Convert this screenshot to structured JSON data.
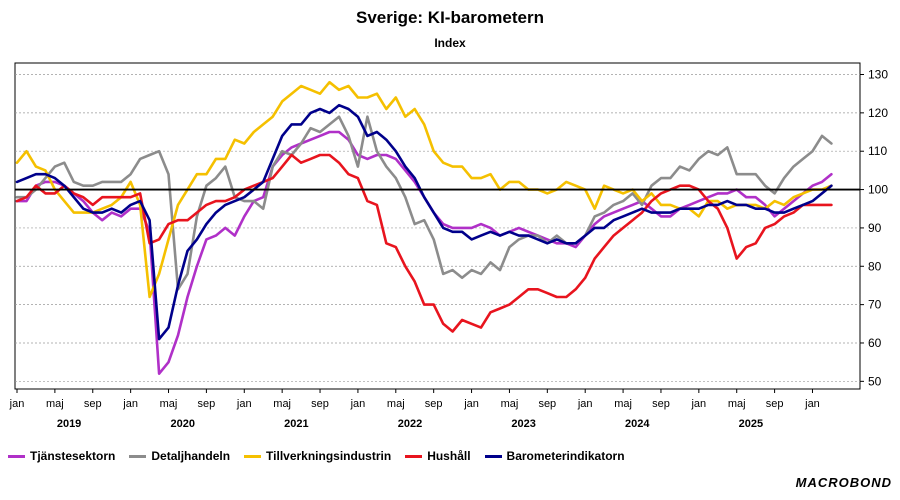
{
  "header": {
    "title": "Sverige: KI-barometern",
    "subtitle": "Index"
  },
  "brand": {
    "name": "MACROBOND"
  },
  "chart_data": {
    "type": "line",
    "title": "Sverige: KI-barometern",
    "ylabel": "Index",
    "xlabel": "",
    "ylim": [
      48,
      133
    ],
    "yticks": [
      50,
      60,
      70,
      80,
      90,
      100,
      110,
      120,
      130
    ],
    "reference_line": 100,
    "grid": "horizontal dashed",
    "x_start": "2019-01",
    "x_tick_labels": [
      "jan",
      "maj",
      "sep",
      "jan",
      "maj",
      "sep",
      "jan",
      "maj",
      "sep",
      "jan",
      "maj",
      "sep",
      "jan",
      "maj",
      "sep",
      "jan",
      "maj",
      "sep",
      "jan",
      "maj",
      "sep",
      "jan"
    ],
    "year_labels": [
      "2019",
      "2020",
      "2021",
      "2022",
      "2023",
      "2024",
      "2025"
    ],
    "legend_position": "bottom",
    "series": [
      {
        "name": "Tjänstesektorn",
        "color": "#b030c8",
        "values": [
          97,
          97,
          101,
          102,
          102,
          101,
          99,
          97,
          94,
          92,
          94,
          93,
          95,
          95,
          89,
          52,
          55,
          62,
          72,
          80,
          87,
          88,
          90,
          88,
          93,
          97,
          98,
          106,
          109,
          111,
          112,
          113,
          114,
          115,
          115,
          113,
          109,
          108,
          109,
          109,
          108,
          105,
          102,
          98,
          94,
          91,
          90,
          90,
          90,
          91,
          90,
          88,
          89,
          90,
          89,
          88,
          87,
          86,
          86,
          85,
          88,
          91,
          93,
          94,
          95,
          96,
          97,
          95,
          93,
          93,
          95,
          96,
          97,
          98,
          99,
          99,
          100,
          98,
          98,
          96,
          93,
          95,
          97,
          99,
          101,
          102,
          104
        ]
      },
      {
        "name": "Detaljhandeln",
        "color": "#8c8c8c",
        "values": [
          98,
          98,
          100,
          103,
          106,
          107,
          102,
          101,
          101,
          102,
          102,
          102,
          104,
          108,
          109,
          110,
          104,
          74,
          78,
          93,
          101,
          103,
          106,
          98,
          97,
          97,
          95,
          106,
          110,
          109,
          112,
          116,
          115,
          117,
          119,
          114,
          106,
          119,
          110,
          106,
          103,
          98,
          91,
          92,
          87,
          78,
          79,
          77,
          79,
          78,
          81,
          79,
          85,
          87,
          88,
          88,
          86,
          88,
          86,
          86,
          88,
          93,
          94,
          96,
          97,
          99,
          96,
          101,
          103,
          103,
          106,
          105,
          108,
          110,
          109,
          111,
          104,
          104,
          104,
          101,
          99,
          103,
          106,
          108,
          110,
          114,
          112
        ]
      },
      {
        "name": "Tillverkningsindustrin",
        "color": "#f5c000",
        "values": [
          107,
          110,
          106,
          105,
          100,
          97,
          94,
          94,
          94,
          95,
          96,
          98,
          102,
          96,
          72,
          78,
          87,
          96,
          100,
          104,
          104,
          108,
          108,
          113,
          112,
          115,
          117,
          119,
          123,
          125,
          127,
          126,
          125,
          128,
          126,
          127,
          124,
          124,
          125,
          121,
          124,
          119,
          121,
          117,
          110,
          107,
          106,
          106,
          103,
          103,
          104,
          100,
          102,
          102,
          100,
          100,
          99,
          100,
          102,
          101,
          100,
          95,
          101,
          100,
          99,
          100,
          97,
          99,
          96,
          96,
          95,
          95,
          93,
          97,
          97,
          95,
          96,
          96,
          96,
          95,
          97,
          96,
          98,
          99,
          100,
          100,
          101
        ]
      },
      {
        "name": "Hushåll",
        "color": "#e8141e",
        "values": [
          97,
          98,
          101,
          99,
          99,
          101,
          99,
          98,
          96,
          98,
          98,
          98,
          98,
          99,
          86,
          87,
          91,
          92,
          92,
          94,
          96,
          97,
          97,
          98,
          100,
          101,
          102,
          103,
          106,
          109,
          107,
          108,
          109,
          109,
          107,
          104,
          103,
          97,
          96,
          86,
          85,
          80,
          76,
          70,
          70,
          65,
          63,
          66,
          65,
          64,
          68,
          69,
          70,
          72,
          74,
          74,
          73,
          72,
          72,
          74,
          77,
          82,
          85,
          88,
          90,
          92,
          94,
          97,
          99,
          100,
          101,
          101,
          100,
          97,
          95,
          90,
          82,
          85,
          86,
          90,
          91,
          93,
          94,
          96,
          96,
          96,
          96
        ]
      },
      {
        "name": "Barometerindikatorn",
        "color": "#00008b",
        "values": [
          102,
          103,
          104,
          104,
          103,
          101,
          98,
          95,
          94,
          94,
          95,
          94,
          96,
          97,
          92,
          61,
          64,
          75,
          84,
          87,
          91,
          94,
          96,
          97,
          98,
          100,
          102,
          108,
          114,
          117,
          117,
          120,
          121,
          120,
          122,
          121,
          119,
          114,
          115,
          113,
          110,
          106,
          103,
          98,
          94,
          90,
          89,
          89,
          87,
          88,
          89,
          88,
          89,
          88,
          88,
          87,
          86,
          87,
          86,
          86,
          88,
          90,
          90,
          92,
          93,
          94,
          95,
          94,
          94,
          94,
          95,
          95,
          95,
          96,
          96,
          97,
          96,
          96,
          95,
          95,
          94,
          94,
          95,
          96,
          97,
          99,
          101
        ]
      }
    ]
  }
}
